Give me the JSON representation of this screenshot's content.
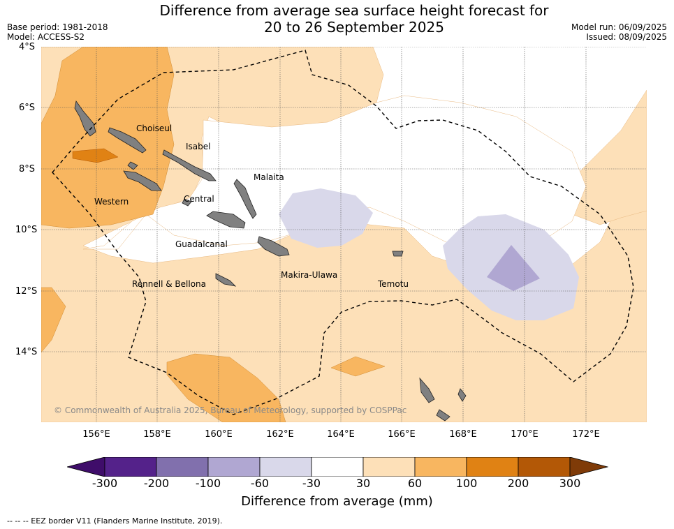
{
  "title_line1": "Difference from average sea surface height forecast for",
  "title_line2": "20 to 26 September 2025",
  "meta_left": {
    "base_period": "Base period: 1981-2018",
    "model": "Model: ACCESS-S2"
  },
  "meta_right": {
    "model_run": "Model run: 06/09/2025",
    "issued": "Issued: 08/09/2025"
  },
  "lat_labels": [
    "4°S",
    "6°S",
    "8°S",
    "10°S",
    "12°S",
    "14°S"
  ],
  "lon_labels": [
    "156°E",
    "158°E",
    "160°E",
    "162°E",
    "164°E",
    "166°E",
    "168°E",
    "170°E",
    "172°E"
  ],
  "province_labels": [
    "Choiseul",
    "Isabel",
    "Malaita",
    "Western",
    "Central",
    "Guadalcanal",
    "Makira-Ulawa",
    "Rennell & Bellona",
    "Temotu"
  ],
  "copyright": "© Commonwealth of Australia 2025, Bureau of Meteorology, supported by COSPPac",
  "colorbar": {
    "ticks": [
      "-300",
      "-200",
      "-100",
      "-60",
      "-30",
      "30",
      "60",
      "100",
      "200",
      "300"
    ],
    "colors": [
      "#3f0d6a",
      "#54228a",
      "#8170ad",
      "#b0a7d2",
      "#d9d8ea",
      "#ffffff",
      "#fde0b8",
      "#f8b660",
      "#e08214",
      "#b35806",
      "#7f3b08"
    ],
    "label": "Difference from average (mm)"
  },
  "footnote": "--  --  -- EEZ border V11 (Flanders Marine Institute, 2019)."
}
